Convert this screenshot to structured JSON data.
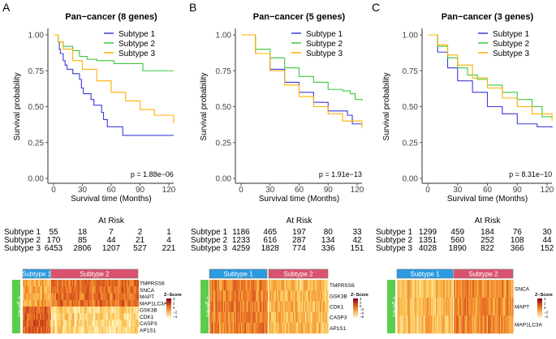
{
  "colors": {
    "subtype1": "#3b3bdc",
    "subtype2": "#3cc83c",
    "subtype3": "#ffb000",
    "header1": "#2b9be0",
    "header2": "#d9536e",
    "side": "#5ccc4c"
  },
  "chart_data": [
    {
      "type": "line",
      "panel_letter": "A",
      "title": "Pan−cancer (8 genes)",
      "xlabel": "Survival time (Months)",
      "ylabel": "Survival probability",
      "xlim": [
        0,
        125
      ],
      "ylim": [
        0,
        1
      ],
      "xticks": [
        "0",
        "30",
        "60",
        "90",
        "120"
      ],
      "yticks": [
        "0.00",
        "0.25",
        "0.50",
        "0.75",
        "1.00"
      ],
      "legend_position": "top-right",
      "pvalue": "p = 1.88e−06",
      "series": [
        {
          "name": "Subtype 1",
          "points": [
            [
              0,
              1
            ],
            [
              3,
              1
            ],
            [
              5,
              0.95
            ],
            [
              6,
              0.9
            ],
            [
              7,
              0.87
            ],
            [
              10,
              0.82
            ],
            [
              12,
              0.79
            ],
            [
              14,
              0.76
            ],
            [
              20,
              0.73
            ],
            [
              27,
              0.69
            ],
            [
              29,
              0.63
            ],
            [
              31,
              0.59
            ],
            [
              39,
              0.55
            ],
            [
              42,
              0.51
            ],
            [
              50,
              0.46
            ],
            [
              52,
              0.41
            ],
            [
              56,
              0.36
            ],
            [
              72,
              0.3
            ],
            [
              125,
              0.3
            ]
          ]
        },
        {
          "name": "Subtype 2",
          "points": [
            [
              0,
              1
            ],
            [
              5,
              0.95
            ],
            [
              10,
              0.92
            ],
            [
              20,
              0.89
            ],
            [
              27,
              0.85
            ],
            [
              35,
              0.83
            ],
            [
              45,
              0.82
            ],
            [
              63,
              0.8
            ],
            [
              93,
              0.75
            ],
            [
              125,
              0.75
            ]
          ]
        },
        {
          "name": "Subtype 3",
          "points": [
            [
              0,
              1
            ],
            [
              5,
              0.95
            ],
            [
              10,
              0.9
            ],
            [
              20,
              0.82
            ],
            [
              30,
              0.76
            ],
            [
              45,
              0.68
            ],
            [
              60,
              0.6
            ],
            [
              75,
              0.54
            ],
            [
              90,
              0.48
            ],
            [
              105,
              0.44
            ],
            [
              125,
              0.385
            ]
          ]
        }
      ],
      "at_risk": {
        "title": "At Risk",
        "rows": [
          {
            "label": "Subtype 1",
            "values": [
              "55",
              "18",
              "7",
              "2",
              "1"
            ]
          },
          {
            "label": "Subtype 2",
            "values": [
              "170",
              "85",
              "44",
              "21",
              "4"
            ]
          },
          {
            "label": "Subtype 3",
            "values": [
              "6453",
              "2806",
              "1207",
              "527",
              "221"
            ]
          }
        ]
      },
      "heatmap": {
        "side_label": "8 genes",
        "groups": [
          "Subtype 1",
          "Subtype 2"
        ],
        "genes": [
          "TMPRSS6",
          "SNCA",
          "MAPT",
          "MAP1LC3A",
          "GSK3B",
          "CDK1",
          "CASP3",
          "AP1S1"
        ],
        "legend_title": "Z−Score",
        "legend_ticks": [
          "4",
          "2",
          "0",
          "−2",
          "−4"
        ]
      }
    },
    {
      "type": "line",
      "panel_letter": "B",
      "title": "Pan−cancer (5 genes)",
      "xlabel": "Survival time (Months)",
      "ylabel": "Survival probability",
      "xlim": [
        0,
        125
      ],
      "ylim": [
        0,
        1
      ],
      "xticks": [
        "0",
        "30",
        "60",
        "90",
        "120"
      ],
      "yticks": [
        "0.00",
        "0.25",
        "0.50",
        "0.75",
        "1.00"
      ],
      "legend_position": "top-right",
      "pvalue": "p = 1.91e−13",
      "series": [
        {
          "name": "Subtype 1",
          "points": [
            [
              0,
              1
            ],
            [
              15,
              0.87
            ],
            [
              30,
              0.76
            ],
            [
              45,
              0.67
            ],
            [
              60,
              0.6
            ],
            [
              75,
              0.53
            ],
            [
              90,
              0.47
            ],
            [
              110,
              0.44
            ],
            [
              115,
              0.38
            ],
            [
              125,
              0.38
            ]
          ]
        },
        {
          "name": "Subtype 2",
          "points": [
            [
              0,
              1
            ],
            [
              15,
              0.9
            ],
            [
              30,
              0.84
            ],
            [
              45,
              0.77
            ],
            [
              60,
              0.71
            ],
            [
              75,
              0.67
            ],
            [
              90,
              0.62
            ],
            [
              105,
              0.61
            ],
            [
              113,
              0.59
            ],
            [
              118,
              0.55
            ],
            [
              125,
              0.54
            ]
          ]
        },
        {
          "name": "Subtype 3",
          "points": [
            [
              0,
              1
            ],
            [
              15,
              0.87
            ],
            [
              30,
              0.75
            ],
            [
              45,
              0.65
            ],
            [
              60,
              0.57
            ],
            [
              75,
              0.5
            ],
            [
              90,
              0.45
            ],
            [
              105,
              0.4
            ],
            [
              125,
              0.35
            ]
          ]
        }
      ],
      "at_risk": {
        "title": "At Risk",
        "rows": [
          {
            "label": "Subtype 1",
            "values": [
              "1186",
              "465",
              "197",
              "80",
              "33"
            ]
          },
          {
            "label": "Subtype 2",
            "values": [
              "1233",
              "616",
              "287",
              "134",
              "42"
            ]
          },
          {
            "label": "Subtype 3",
            "values": [
              "4259",
              "1828",
              "774",
              "336",
              "151"
            ]
          }
        ]
      },
      "heatmap": {
        "side_label": "5 genes",
        "groups": [
          "Subtype 1",
          "Subtype 2"
        ],
        "genes": [
          "TMPRSS6",
          "GSK3B",
          "CDK1",
          "CASP3",
          "AP1S1"
        ],
        "legend_title": "Z−Score",
        "legend_ticks": [
          "4",
          "2",
          "0",
          "−2",
          "−4",
          "−6"
        ]
      }
    },
    {
      "type": "line",
      "panel_letter": "C",
      "title": "Pan−cancer (3 genes)",
      "xlabel": "Survival time (Months)",
      "ylabel": "Survival probability",
      "xlim": [
        0,
        125
      ],
      "ylim": [
        0,
        1
      ],
      "xticks": [
        "0",
        "30",
        "60",
        "90",
        "120"
      ],
      "yticks": [
        "0.00",
        "0.25",
        "0.50",
        "0.75",
        "1.00"
      ],
      "legend_position": "top-right",
      "pvalue": "p = 8.31e−10",
      "series": [
        {
          "name": "Subtype 1",
          "points": [
            [
              0,
              1
            ],
            [
              10,
              0.88
            ],
            [
              20,
              0.77
            ],
            [
              30,
              0.68
            ],
            [
              45,
              0.6
            ],
            [
              60,
              0.5
            ],
            [
              75,
              0.45
            ],
            [
              90,
              0.38
            ],
            [
              110,
              0.36
            ],
            [
              125,
              0.355
            ]
          ]
        },
        {
          "name": "Subtype 2",
          "points": [
            [
              0,
              1
            ],
            [
              10,
              0.92
            ],
            [
              20,
              0.84
            ],
            [
              30,
              0.77
            ],
            [
              40,
              0.72
            ],
            [
              50,
              0.69
            ],
            [
              60,
              0.65
            ],
            [
              75,
              0.6
            ],
            [
              90,
              0.55
            ],
            [
              105,
              0.5
            ],
            [
              115,
              0.43
            ],
            [
              125,
              0.43
            ]
          ]
        },
        {
          "name": "Subtype 3",
          "points": [
            [
              0,
              1
            ],
            [
              10,
              0.93
            ],
            [
              20,
              0.86
            ],
            [
              30,
              0.79
            ],
            [
              45,
              0.7
            ],
            [
              60,
              0.63
            ],
            [
              75,
              0.56
            ],
            [
              90,
              0.5
            ],
            [
              105,
              0.45
            ],
            [
              125,
              0.4
            ]
          ]
        }
      ],
      "at_risk": {
        "title": "At Risk",
        "rows": [
          {
            "label": "Subtype 1",
            "values": [
              "1299",
              "459",
              "184",
              "76",
              "30"
            ]
          },
          {
            "label": "Subtype 2",
            "values": [
              "1351",
              "560",
              "252",
              "108",
              "44"
            ]
          },
          {
            "label": "Subtype 3",
            "values": [
              "4028",
              "1890",
              "822",
              "366",
              "152"
            ]
          }
        ]
      },
      "heatmap": {
        "side_label": "3 genes",
        "groups": [
          "Subtype 1",
          "Subtype 2"
        ],
        "genes": [
          "SNCA",
          "MAPT",
          "MAP1LC3A"
        ],
        "legend_title": "Z−Score",
        "legend_ticks": [
          "4",
          "2",
          "0",
          "−2",
          "−4"
        ]
      }
    }
  ]
}
